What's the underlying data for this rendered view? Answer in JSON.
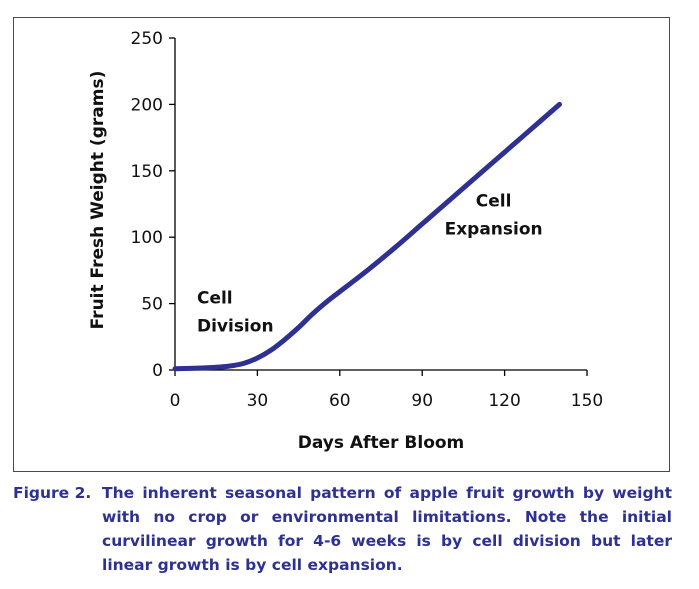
{
  "chart_data": {
    "type": "line",
    "xlabel": "Days After Bloom",
    "ylabel": "Fruit Fresh Weight (grams)",
    "xlim": [
      0,
      150
    ],
    "ylim": [
      0,
      250
    ],
    "xticks": [
      0,
      30,
      60,
      90,
      120,
      150
    ],
    "yticks": [
      0,
      50,
      100,
      150,
      200,
      250
    ],
    "grid": false,
    "series": [
      {
        "color": "#2e3192",
        "x": [
          0,
          10,
          15,
          20,
          25,
          30,
          35,
          40,
          45,
          50,
          55,
          60,
          70,
          80,
          90,
          100,
          110,
          120,
          130,
          140
        ],
        "y": [
          1,
          1.5,
          2,
          3,
          5,
          9,
          15,
          23,
          32,
          42,
          51,
          59,
          75,
          92,
          110,
          128,
          146,
          164,
          182,
          200
        ]
      }
    ],
    "annotations": [
      {
        "lines": [
          "Cell",
          "Division"
        ],
        "x": 8,
        "y": 50
      },
      {
        "lines": [
          "Cell",
          "Expansion"
        ],
        "x": 116,
        "y": 123
      }
    ]
  },
  "caption": {
    "label": "Figure 2.",
    "text": "The inherent seasonal pattern of apple fruit growth by weight with no crop or environmental limitations. Note the initial curvilinear growth for 4-6 weeks is by cell division but later linear growth is by cell expansion."
  }
}
